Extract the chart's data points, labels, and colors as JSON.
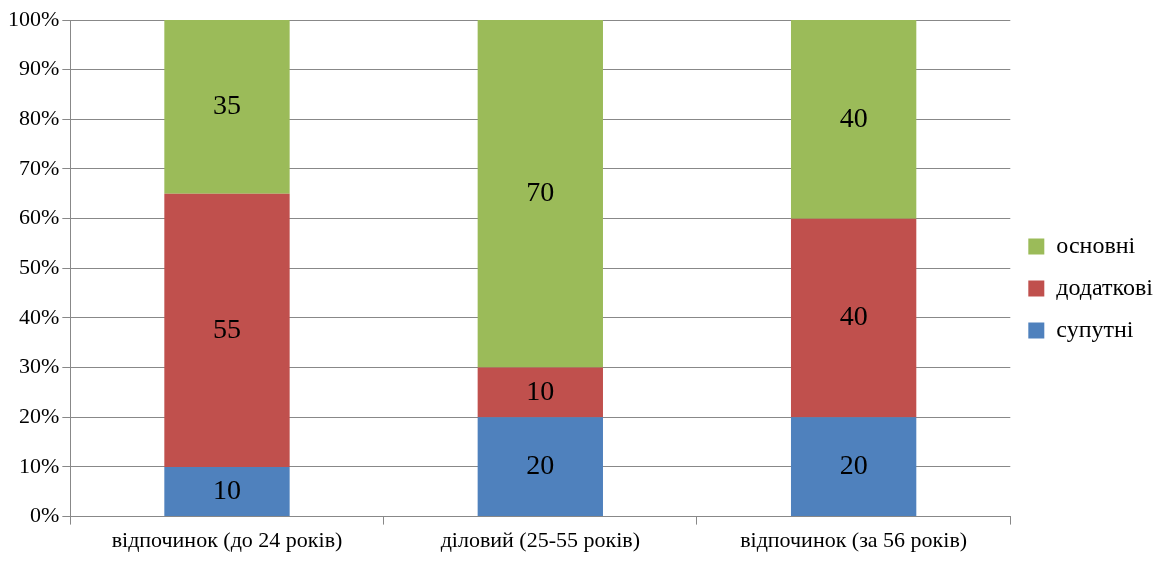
{
  "chart_data": {
    "type": "bar",
    "stacked": true,
    "categories": [
      "відпочинок (до 24 років)",
      "діловий (25-55 років)",
      "відпочинок (за 56 років)"
    ],
    "series": [
      {
        "name": "супутні",
        "color": "#4f81bd",
        "values": [
          10,
          20,
          20
        ]
      },
      {
        "name": "додаткові",
        "color": "#c0504d",
        "values": [
          55,
          10,
          40
        ]
      },
      {
        "name": "основні",
        "color": "#9bbb59",
        "values": [
          35,
          70,
          40
        ]
      }
    ],
    "ylim": [
      0,
      100
    ],
    "yticks": [
      {
        "value": 0,
        "label": "0%"
      },
      {
        "value": 10,
        "label": "10%"
      },
      {
        "value": 20,
        "label": "20%"
      },
      {
        "value": 30,
        "label": "30%"
      },
      {
        "value": 40,
        "label": "40%"
      },
      {
        "value": 50,
        "label": "50%"
      },
      {
        "value": 60,
        "label": "60%"
      },
      {
        "value": 70,
        "label": "70%"
      },
      {
        "value": 80,
        "label": "80%"
      },
      {
        "value": 90,
        "label": "90%"
      },
      {
        "value": 100,
        "label": "100%"
      }
    ],
    "grid": "y",
    "legend": "right",
    "data_labels": true
  }
}
